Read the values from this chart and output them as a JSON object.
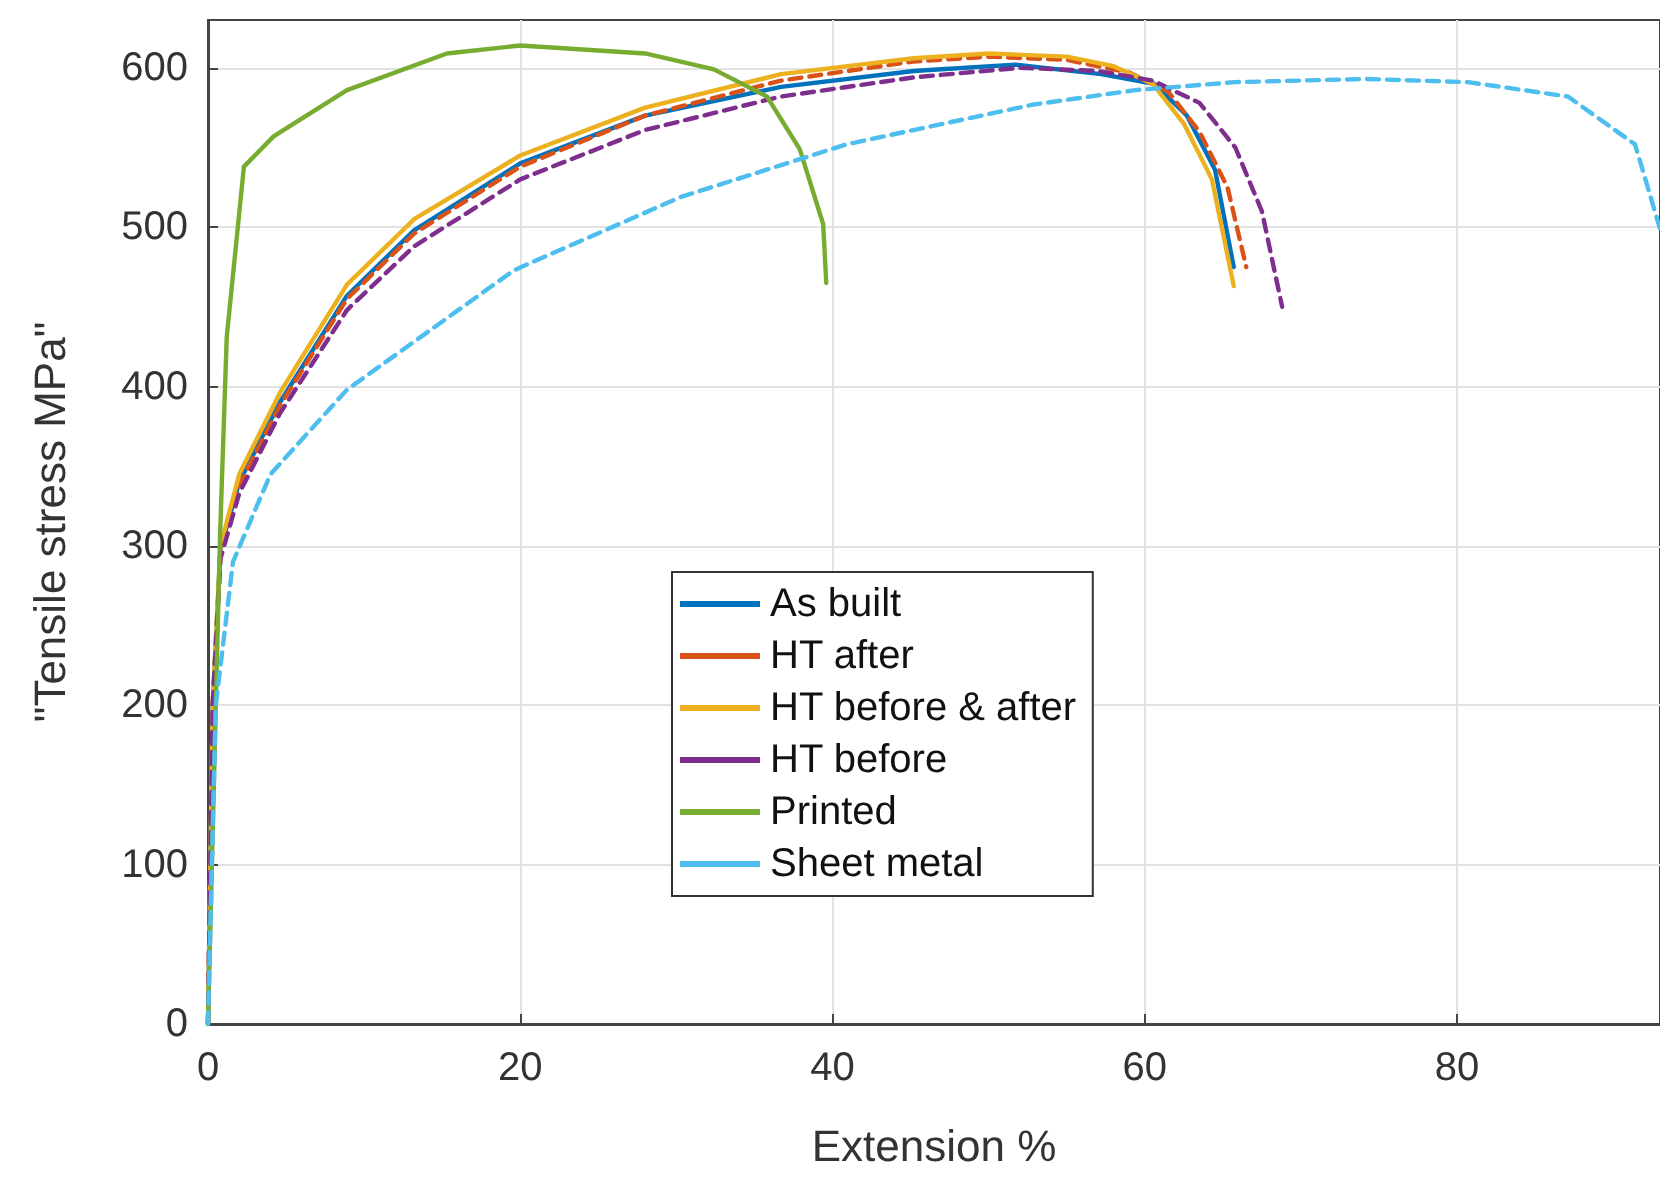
{
  "chart_data": {
    "type": "line",
    "xlabel": "Extension %",
    "ylabel": "\"Tensile stress MPa\"",
    "xlim": [
      0,
      93
    ],
    "xticks": [
      0,
      20,
      40,
      60,
      80
    ],
    "ylim": [
      0,
      630
    ],
    "yticks": [
      0,
      100,
      200,
      300,
      400,
      500,
      600
    ],
    "grid": true,
    "legend": "bottom",
    "marker": "none",
    "series": [
      {
        "name": "As built",
        "color": "#0072bd",
        "line_style": "solid",
        "x": [
          0,
          0.3,
          0.8,
          2,
          4.6,
          8.9,
          13.2,
          20,
          28,
          36.7,
          45.2,
          51.7,
          57.2,
          60.6,
          62.7,
          64.5,
          65.7
        ],
        "values": [
          0,
          200,
          298,
          340,
          390,
          457,
          498,
          540,
          570,
          588,
          598,
          602,
          596,
          590,
          570,
          536,
          475
        ]
      },
      {
        "name": "HT after",
        "color": "#d95319",
        "line_style": "dashed",
        "x": [
          0,
          0.3,
          0.8,
          2,
          4.6,
          8.9,
          13.2,
          20,
          28,
          36.7,
          45.2,
          50,
          55,
          59,
          61.5,
          63.5,
          65.3,
          66.5
        ],
        "values": [
          0,
          200,
          295,
          338,
          388,
          455,
          496,
          538,
          570,
          592,
          604,
          607,
          605,
          597,
          585,
          560,
          525,
          475
        ]
      },
      {
        "name": "HT before & after",
        "color": "#edb120",
        "line_style": "solid",
        "x": [
          0,
          0.3,
          0.8,
          2,
          4.6,
          8.9,
          13.2,
          20,
          28,
          36.7,
          45.2,
          50,
          55,
          58,
          60.5,
          62.5,
          64.3,
          65.7
        ],
        "values": [
          0,
          200,
          300,
          345,
          396,
          464,
          505,
          545,
          575,
          596,
          606,
          609,
          607,
          601,
          590,
          565,
          530,
          463
        ]
      },
      {
        "name": "HT before",
        "color": "#7e2f8e",
        "line_style": "dashed",
        "x": [
          0,
          0.3,
          0.8,
          2,
          4.6,
          8.9,
          13.2,
          20,
          28,
          36.7,
          45.2,
          52,
          57,
          60.5,
          63.5,
          65.8,
          67.5,
          68.8
        ],
        "values": [
          0,
          200,
          292,
          333,
          383,
          448,
          488,
          530,
          561,
          582,
          594,
          600,
          598,
          592,
          578,
          550,
          510,
          450
        ]
      },
      {
        "name": "Printed",
        "color": "#77ac30",
        "line_style": "solid",
        "x": [
          0,
          0.5,
          0.77,
          1.2,
          2.3,
          4.2,
          8.9,
          15.3,
          20,
          28,
          32.4,
          35.8,
          37.9,
          39.4,
          39.6
        ],
        "values": [
          0,
          200,
          306,
          431,
          538,
          557,
          586,
          609,
          614,
          609,
          599,
          582,
          549,
          502,
          465
        ]
      },
      {
        "name": "Sheet metal",
        "color": "#4dbeee",
        "line_style": "dashed",
        "x": [
          0,
          0.5,
          1.6,
          4,
          8.9,
          19.6,
          30.3,
          40.9,
          52.9,
          59.4,
          65.8,
          74.2,
          80.7,
          87.1,
          91.4,
          93
        ],
        "values": [
          0,
          200,
          290,
          345,
          398,
          473,
          519,
          552,
          577,
          586,
          591,
          593,
          591,
          582,
          552,
          499
        ]
      }
    ]
  }
}
